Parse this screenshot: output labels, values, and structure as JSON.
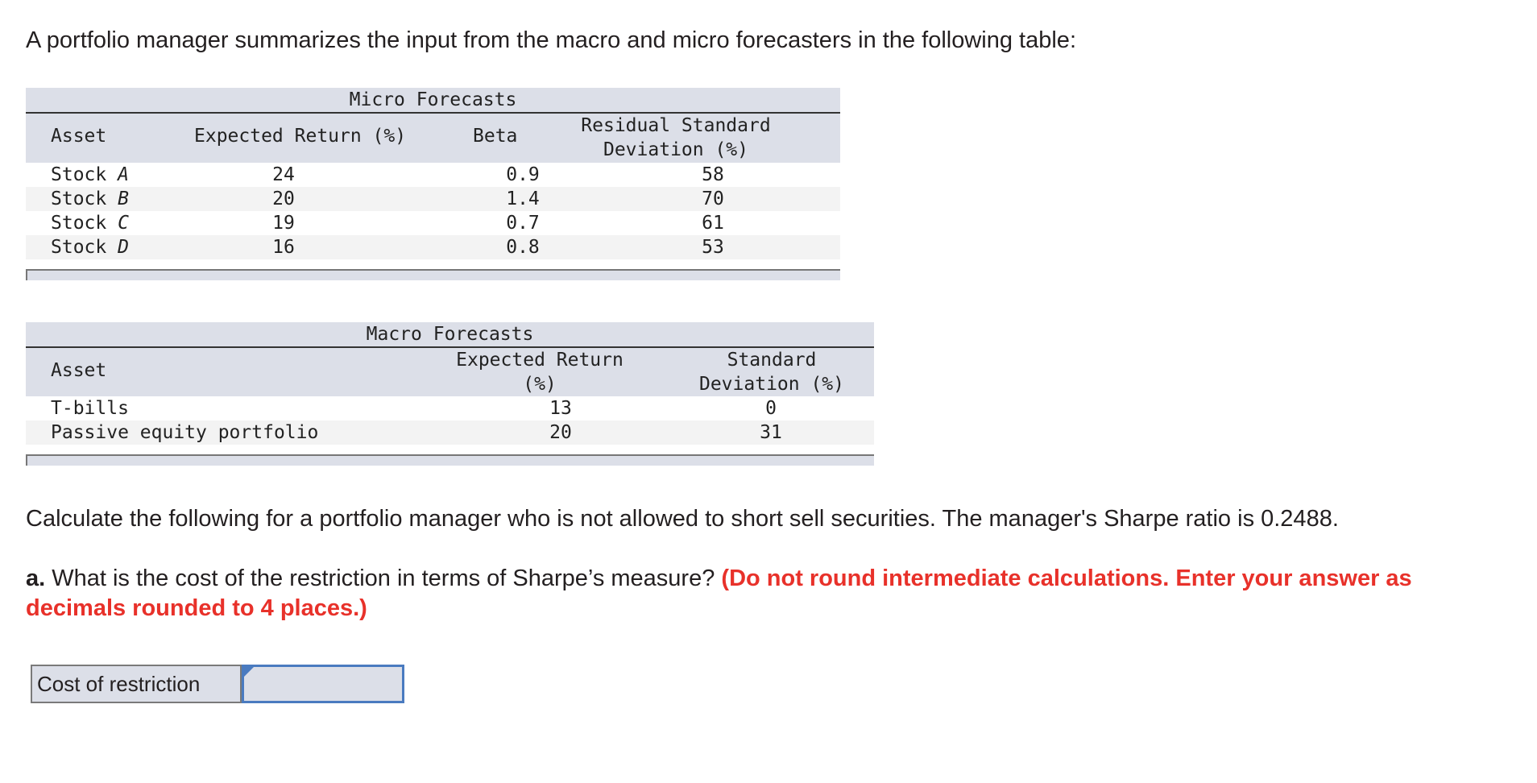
{
  "intro": "A portfolio manager summarizes the input from the macro and micro forecasters in the following table:",
  "micro": {
    "caption": "Micro Forecasts",
    "headers": {
      "asset": "Asset",
      "expected_return": "Expected Return (%)",
      "beta": "Beta",
      "resid_line1": "Residual Standard",
      "resid_line2": "Deviation (%)"
    },
    "rows": [
      {
        "prefix": "Stock ",
        "letter": "A",
        "er": "24",
        "beta": "0.9",
        "sd": "58"
      },
      {
        "prefix": "Stock ",
        "letter": "B",
        "er": "20",
        "beta": "1.4",
        "sd": "70"
      },
      {
        "prefix": "Stock ",
        "letter": "C",
        "er": "19",
        "beta": "0.7",
        "sd": "61"
      },
      {
        "prefix": "Stock ",
        "letter": "D",
        "er": "16",
        "beta": "0.8",
        "sd": "53"
      }
    ]
  },
  "macro": {
    "caption": "Macro Forecasts",
    "headers": {
      "asset": "Asset",
      "er_line1": "Expected Return",
      "er_line2": "(%)",
      "sd_line1": "Standard",
      "sd_line2": "Deviation (%)"
    },
    "rows": [
      {
        "asset": "T-bills",
        "er": "13",
        "sd": "0"
      },
      {
        "asset": "Passive equity portfolio",
        "er": "20",
        "sd": "31"
      }
    ]
  },
  "calc_text": "Calculate the following for a portfolio manager who is not allowed to short sell securities. The manager's Sharpe ratio is 0.2488.",
  "question": {
    "label": "a.",
    "text": " What is the cost of the restriction in terms of Sharpe’s measure? ",
    "instruction": "(Do not round intermediate calculations. Enter your answer as decimals rounded to 4 places.)"
  },
  "answer": {
    "label": "Cost of restriction",
    "value": ""
  }
}
